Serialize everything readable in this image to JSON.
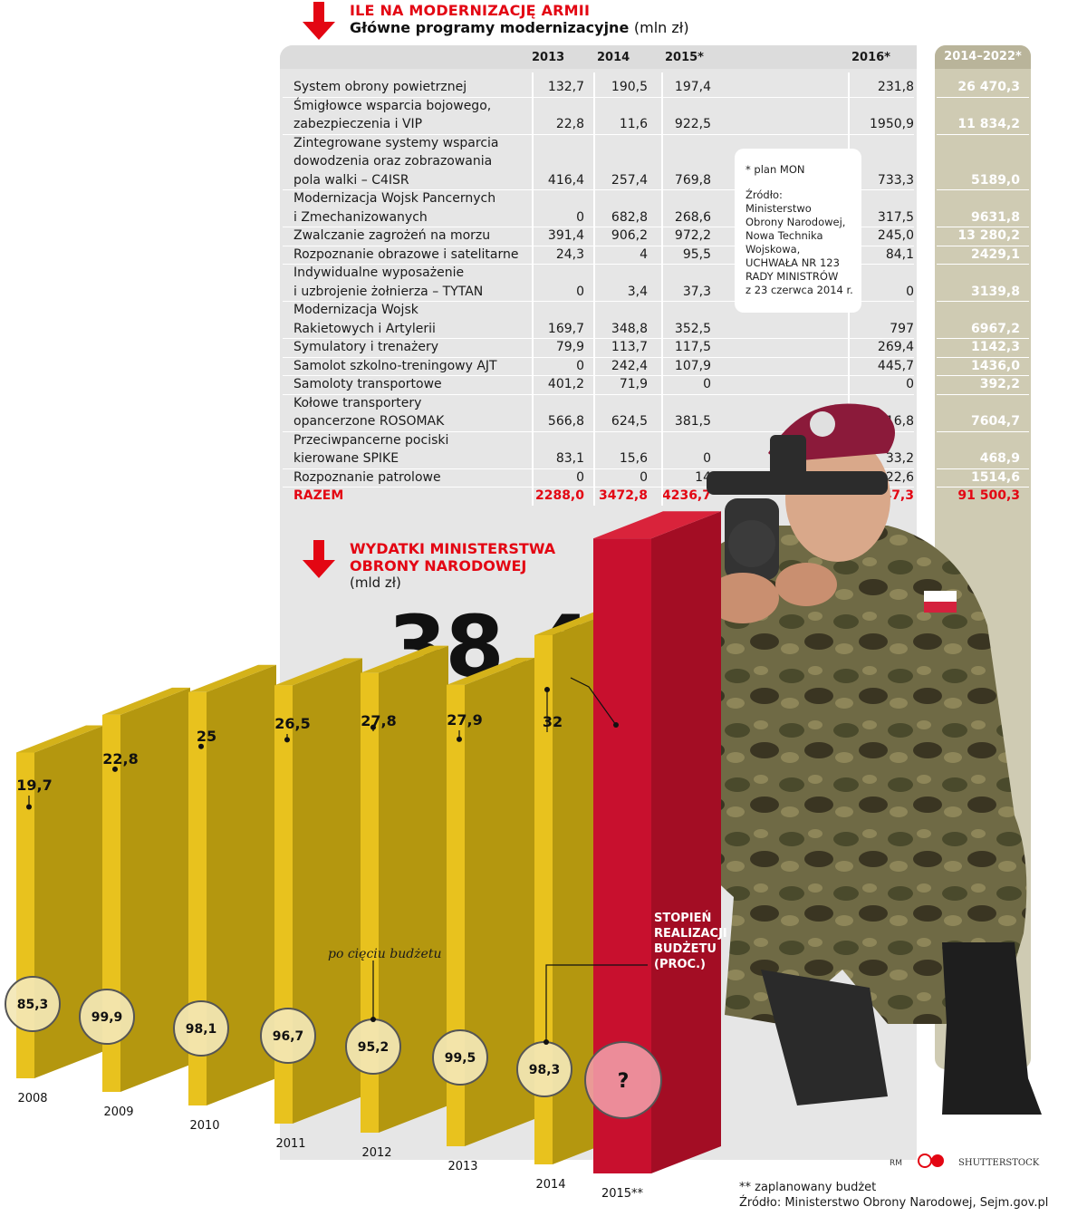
{
  "header": {
    "title": "ILE NA MODERNIZACJĘ ARMII",
    "subtitle": "Główne programy modernizacyjne",
    "unit": "(mln zł)"
  },
  "table": {
    "columns": [
      "2013",
      "2014",
      "2015*",
      "2016*"
    ],
    "range_column": "2014–2022*",
    "rows": [
      {
        "label": "System obrony powietrznej",
        "values": [
          "132,7",
          "190,5",
          "197,4",
          "231,8"
        ],
        "range": "26 470,3"
      },
      {
        "label": "Śmigłowce wsparcia bojowego,\nzabezpieczenia i VIP",
        "values": [
          "22,8",
          "11,6",
          "922,5",
          "1950,9"
        ],
        "range": "11 834,2"
      },
      {
        "label": "Zintegrowane systemy wsparcia\ndowodzenia oraz zobrazowania\npola walki – C4ISR",
        "values": [
          "416,4",
          "257,4",
          "769,8",
          "733,3"
        ],
        "range": "5189,0"
      },
      {
        "label": "Modernizacja Wojsk Pancernych\ni Zmechanizowanych",
        "values": [
          "0",
          "682,8",
          "268,6",
          "317,5"
        ],
        "range": "9631,8"
      },
      {
        "label": "Zwalczanie zagrożeń na morzu",
        "values": [
          "391,4",
          "906,2",
          "972,2",
          "245,0"
        ],
        "range": "13 280,2"
      },
      {
        "label": "Rozpoznanie obrazowe i satelitarne",
        "values": [
          "24,3",
          "4",
          "95,5",
          "84,1"
        ],
        "range": "2429,1"
      },
      {
        "label": "Indywidualne wyposażenie\ni uzbrojenie żołnierza – TYTAN",
        "values": [
          "0",
          "3,4",
          "37,3",
          "0"
        ],
        "range": "3139,8"
      },
      {
        "label": "Modernizacja Wojsk\nRakietowych i Artylerii",
        "values": [
          "169,7",
          "348,8",
          "352,5",
          "797"
        ],
        "range": "6967,2"
      },
      {
        "label": "Symulatory i trenażery",
        "values": [
          "79,9",
          "113,7",
          "117,5",
          "269,4"
        ],
        "range": "1142,3"
      },
      {
        "label": "Samolot szkolno-treningowy AJT",
        "values": [
          "0",
          "242,4",
          "107,9",
          "445,7"
        ],
        "range": "1436,0"
      },
      {
        "label": "Samoloty transportowe",
        "values": [
          "401,2",
          "71,9",
          "0",
          "0"
        ],
        "range": "392,2"
      },
      {
        "label": "Kołowe transportery\nopancerzone ROSOMAK",
        "values": [
          "566,8",
          "624,5",
          "381,5",
          "516,8"
        ],
        "range": "7604,7"
      },
      {
        "label": "Przeciwpancerne pociski\nkierowane SPIKE",
        "values": [
          "83,1",
          "15,6",
          "0",
          "33,2"
        ],
        "range": "468,9"
      },
      {
        "label": "Rozpoznanie patrolowe",
        "values": [
          "0",
          "0",
          "14",
          "22,6"
        ],
        "range": "1514,6"
      }
    ],
    "total": {
      "label": "RAZEM",
      "values": [
        "2288,0",
        "3472,8",
        "4236,7",
        "5647,3"
      ],
      "range": "91 500,3"
    },
    "footnote": {
      "plan": "* plan MON",
      "source": "Źródło:\nMinisterstwo\nObrony Narodowej,\nNowa Technika\nWojskowa,\nUCHWAŁA NR 123\nRADY MINISTRÓW\nz 23 czerwca 2014 r."
    }
  },
  "chart_data": {
    "type": "bar",
    "title": "WYDATKI MINISTERSTWA\nOBRONY NARODOWEJ",
    "ylabel": "(mld zł)",
    "categories": [
      "2008",
      "2009",
      "2010",
      "2011",
      "2012",
      "2013",
      "2014",
      "2015**"
    ],
    "values": [
      19.7,
      22.8,
      25,
      26.5,
      27.8,
      27.9,
      32,
      38.4
    ],
    "value_labels": [
      "19,7",
      "22,8",
      "25",
      "26,5",
      "27,8",
      "27,9",
      "32",
      "38,4"
    ],
    "execution_labels": [
      "85,3",
      "99,9",
      "98,1",
      "96,7",
      "95,2",
      "99,5",
      "98,3",
      "?"
    ],
    "execution_title": "STOPIEŃ\nREALIZACJI\nBUDŻETU\n(PROC.)",
    "annotation": "po cięciu budżetu",
    "colors": {
      "bar": "#e8c21e",
      "bar_side": "#b4970f",
      "highlight": "#c8102e",
      "accent": "#e30613"
    }
  },
  "footer": {
    "credits": [
      "RM",
      "SHUTTERSTOCK"
    ],
    "note": "** zaplanowany budżet",
    "source": "Źródło: Ministerstwo Obrony Narodowej, Sejm.gov.pl"
  }
}
